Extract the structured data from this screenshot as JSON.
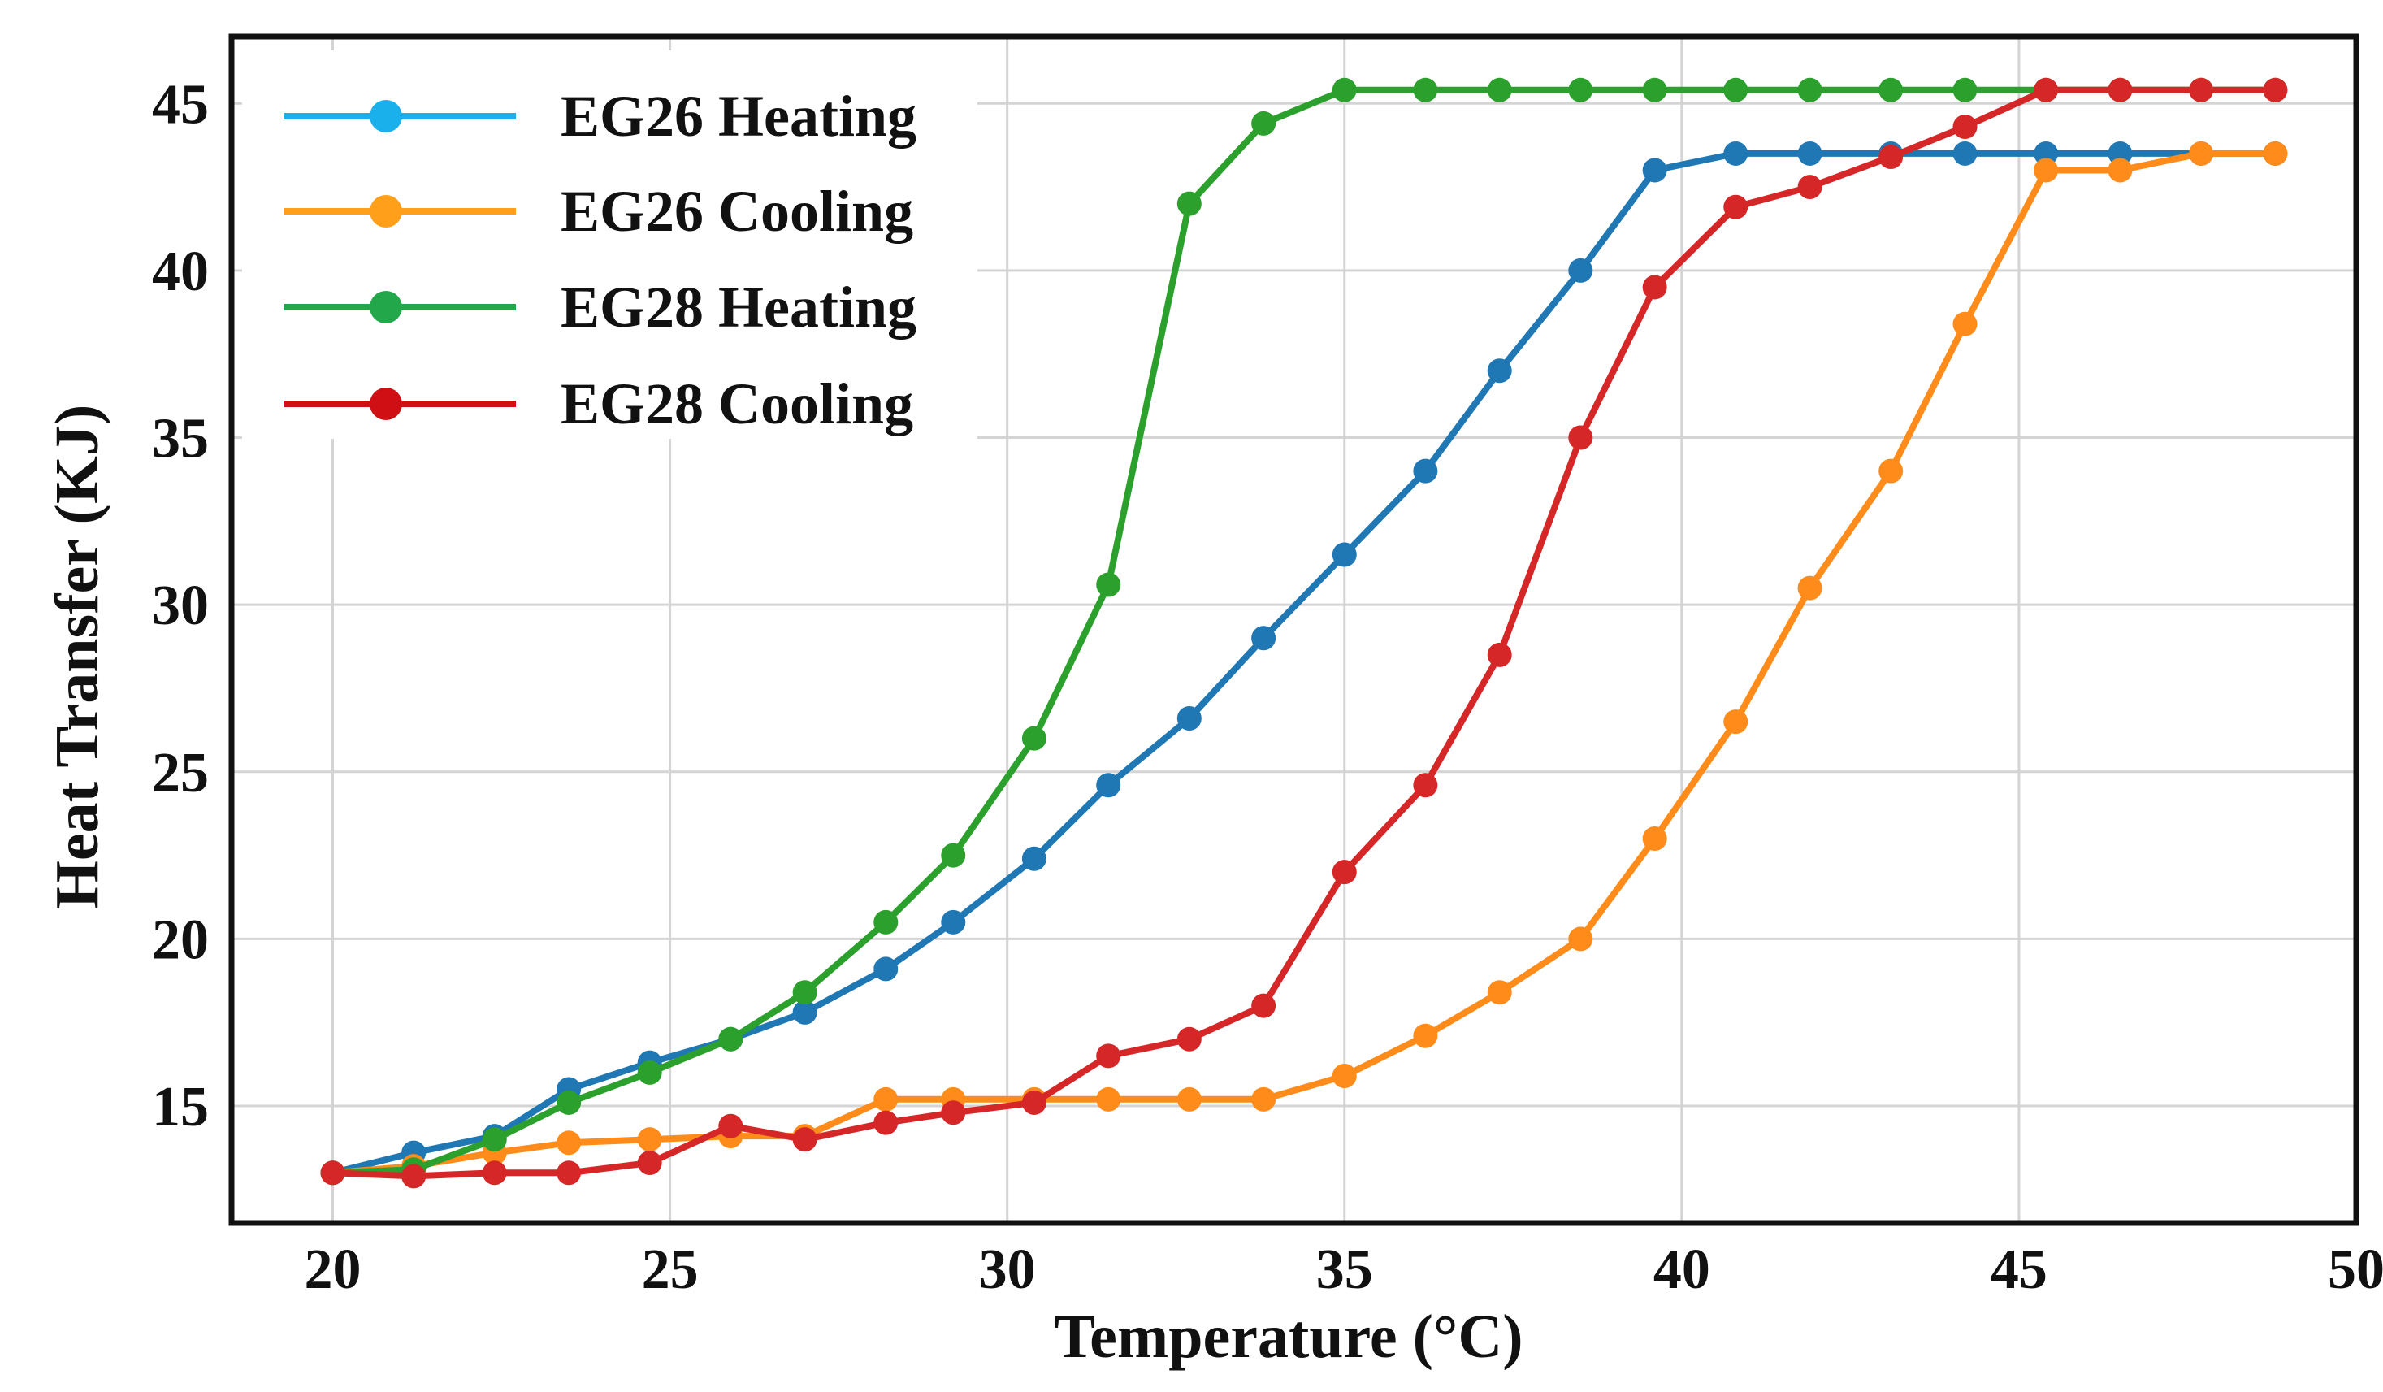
{
  "chart_data": {
    "type": "line",
    "title": "",
    "xlabel": "Temperature (°C)",
    "ylabel": "Heat Transfer (KJ)",
    "xlim": [
      18.5,
      50
    ],
    "ylim": [
      11.5,
      47
    ],
    "xticks": [
      20,
      25,
      30,
      35,
      40,
      45,
      50
    ],
    "yticks": [
      15,
      20,
      25,
      30,
      35,
      40,
      45
    ],
    "grid": true,
    "legend_position": "top-left",
    "series": [
      {
        "name": "EG26 Heating",
        "color": "#1f77b4",
        "legend_color": "#1ab0ec",
        "x": [
          20,
          21.2,
          22.4,
          23.5,
          24.7,
          25.9,
          27.0,
          28.2,
          29.2,
          30.4,
          31.5,
          32.7,
          33.8,
          35.0,
          36.2,
          37.3,
          38.5,
          39.6,
          40.8,
          41.9,
          43.1,
          44.2,
          45.4,
          46.5,
          47.7,
          48.8
        ],
        "y": [
          13.0,
          13.6,
          14.1,
          15.5,
          16.3,
          17.0,
          17.8,
          19.1,
          20.5,
          22.4,
          24.6,
          26.6,
          29.0,
          31.5,
          34.0,
          37.0,
          40.0,
          43.0,
          43.5,
          43.5,
          43.5,
          43.5,
          43.5,
          43.5,
          43.5,
          43.5
        ]
      },
      {
        "name": "EG26 Cooling",
        "color": "#ff8c1a",
        "legend_color": "#ff9f1a",
        "x": [
          20,
          21.2,
          22.4,
          23.5,
          24.7,
          25.9,
          27.0,
          28.2,
          29.2,
          30.4,
          31.5,
          32.7,
          33.8,
          35.0,
          36.2,
          37.3,
          38.5,
          39.6,
          40.8,
          41.9,
          43.1,
          44.2,
          45.4,
          46.5,
          47.7,
          48.8
        ],
        "y": [
          13.0,
          13.2,
          13.6,
          13.9,
          14.0,
          14.1,
          14.1,
          15.2,
          15.2,
          15.2,
          15.2,
          15.2,
          15.2,
          15.9,
          17.1,
          18.4,
          20.0,
          23.0,
          26.5,
          30.5,
          34.0,
          38.4,
          43.0,
          43.0,
          43.5,
          43.5
        ]
      },
      {
        "name": "EG28 Heating",
        "color": "#2ca02c",
        "legend_color": "#22a84a",
        "x": [
          20,
          21.2,
          22.4,
          23.5,
          24.7,
          25.9,
          27.0,
          28.2,
          29.2,
          30.4,
          31.5,
          32.7,
          33.8,
          35.0,
          36.2,
          37.3,
          38.5,
          39.6,
          40.8,
          41.9,
          43.1,
          44.2,
          45.4,
          46.5,
          47.7,
          48.8
        ],
        "y": [
          13.0,
          13.1,
          14.0,
          15.1,
          16.0,
          17.0,
          18.4,
          20.5,
          22.5,
          26.0,
          30.6,
          42.0,
          44.4,
          45.4,
          45.4,
          45.4,
          45.4,
          45.4,
          45.4,
          45.4,
          45.4,
          45.4,
          45.4,
          45.4,
          45.4,
          45.4
        ]
      },
      {
        "name": "EG28 Cooling",
        "color": "#d62728",
        "legend_color": "#d00f14",
        "x": [
          20,
          21.2,
          22.4,
          23.5,
          24.7,
          25.9,
          27.0,
          28.2,
          29.2,
          30.4,
          31.5,
          32.7,
          33.8,
          35.0,
          36.2,
          37.3,
          38.5,
          39.6,
          40.8,
          41.9,
          43.1,
          44.2,
          45.4,
          46.5,
          47.7,
          48.8
        ],
        "y": [
          13.0,
          12.9,
          13.0,
          13.0,
          13.3,
          14.4,
          14.0,
          14.5,
          14.8,
          15.1,
          16.5,
          17.0,
          18.0,
          22.0,
          24.6,
          28.5,
          35.0,
          39.5,
          41.9,
          42.5,
          43.4,
          44.3,
          45.4,
          45.4,
          45.4,
          45.4
        ]
      }
    ]
  }
}
